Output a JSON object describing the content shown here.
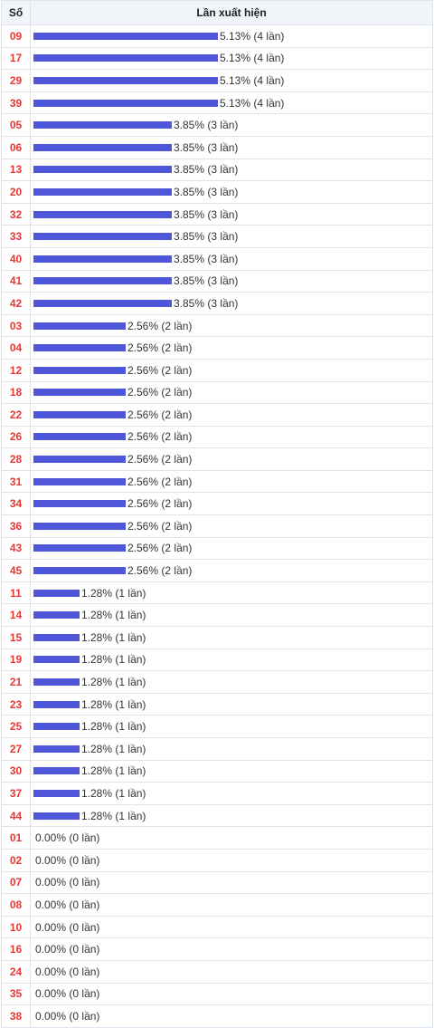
{
  "header": {
    "col_number": "Số",
    "col_frequency": "Lần xuất hiện"
  },
  "colors": {
    "bar": "#4f56d8",
    "number": "#e53935"
  },
  "chart_data": {
    "type": "bar",
    "orientation": "horizontal",
    "unit_label": "lần",
    "rows": [
      {
        "number": "09",
        "percent": "5.13%",
        "count": 4
      },
      {
        "number": "17",
        "percent": "5.13%",
        "count": 4
      },
      {
        "number": "29",
        "percent": "5.13%",
        "count": 4
      },
      {
        "number": "39",
        "percent": "5.13%",
        "count": 4
      },
      {
        "number": "05",
        "percent": "3.85%",
        "count": 3
      },
      {
        "number": "06",
        "percent": "3.85%",
        "count": 3
      },
      {
        "number": "13",
        "percent": "3.85%",
        "count": 3
      },
      {
        "number": "20",
        "percent": "3.85%",
        "count": 3
      },
      {
        "number": "32",
        "percent": "3.85%",
        "count": 3
      },
      {
        "number": "33",
        "percent": "3.85%",
        "count": 3
      },
      {
        "number": "40",
        "percent": "3.85%",
        "count": 3
      },
      {
        "number": "41",
        "percent": "3.85%",
        "count": 3
      },
      {
        "number": "42",
        "percent": "3.85%",
        "count": 3
      },
      {
        "number": "03",
        "percent": "2.56%",
        "count": 2
      },
      {
        "number": "04",
        "percent": "2.56%",
        "count": 2
      },
      {
        "number": "12",
        "percent": "2.56%",
        "count": 2
      },
      {
        "number": "18",
        "percent": "2.56%",
        "count": 2
      },
      {
        "number": "22",
        "percent": "2.56%",
        "count": 2
      },
      {
        "number": "26",
        "percent": "2.56%",
        "count": 2
      },
      {
        "number": "28",
        "percent": "2.56%",
        "count": 2
      },
      {
        "number": "31",
        "percent": "2.56%",
        "count": 2
      },
      {
        "number": "34",
        "percent": "2.56%",
        "count": 2
      },
      {
        "number": "36",
        "percent": "2.56%",
        "count": 2
      },
      {
        "number": "43",
        "percent": "2.56%",
        "count": 2
      },
      {
        "number": "45",
        "percent": "2.56%",
        "count": 2
      },
      {
        "number": "11",
        "percent": "1.28%",
        "count": 1
      },
      {
        "number": "14",
        "percent": "1.28%",
        "count": 1
      },
      {
        "number": "15",
        "percent": "1.28%",
        "count": 1
      },
      {
        "number": "19",
        "percent": "1.28%",
        "count": 1
      },
      {
        "number": "21",
        "percent": "1.28%",
        "count": 1
      },
      {
        "number": "23",
        "percent": "1.28%",
        "count": 1
      },
      {
        "number": "25",
        "percent": "1.28%",
        "count": 1
      },
      {
        "number": "27",
        "percent": "1.28%",
        "count": 1
      },
      {
        "number": "30",
        "percent": "1.28%",
        "count": 1
      },
      {
        "number": "37",
        "percent": "1.28%",
        "count": 1
      },
      {
        "number": "44",
        "percent": "1.28%",
        "count": 1
      },
      {
        "number": "01",
        "percent": "0.00%",
        "count": 0
      },
      {
        "number": "02",
        "percent": "0.00%",
        "count": 0
      },
      {
        "number": "07",
        "percent": "0.00%",
        "count": 0
      },
      {
        "number": "08",
        "percent": "0.00%",
        "count": 0
      },
      {
        "number": "10",
        "percent": "0.00%",
        "count": 0
      },
      {
        "number": "16",
        "percent": "0.00%",
        "count": 0
      },
      {
        "number": "24",
        "percent": "0.00%",
        "count": 0
      },
      {
        "number": "35",
        "percent": "0.00%",
        "count": 0
      },
      {
        "number": "38",
        "percent": "0.00%",
        "count": 0
      }
    ]
  }
}
